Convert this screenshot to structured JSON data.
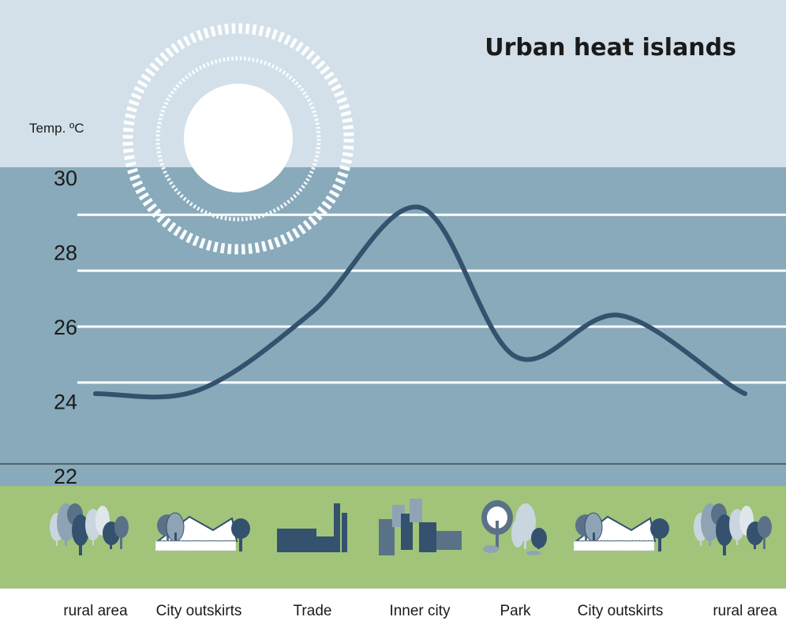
{
  "chart_data": {
    "type": "line",
    "title": "Urban heat islands",
    "ylabel": "Temp. ºC",
    "xlabel": "",
    "ylim": [
      22,
      30
    ],
    "yticks": [
      30,
      28,
      26,
      24,
      22
    ],
    "categories": [
      "rural area",
      "City outskirts",
      "Trade",
      "Inner city",
      "Park",
      "City outskirts",
      "rural area"
    ],
    "series": [
      {
        "values": [
          24.2,
          24.3,
          26.4,
          29.2,
          25.2,
          26.3,
          24.2
        ]
      }
    ],
    "grid": true,
    "legend": "none"
  },
  "colors": {
    "sky": "#d3e0e9",
    "plot_background": "#88aabb",
    "ground": "#a1c47a",
    "line": "#34516e",
    "gridline": "#ffffff",
    "sun": "#ffffff",
    "buildings": "#34516e",
    "trees": "#5a7288"
  },
  "icons": [
    "sun-icon",
    "forest-icon",
    "houses-icon",
    "factory-icon",
    "city-buildings-icon",
    "park-trees-icon",
    "houses-icon",
    "forest-icon"
  ]
}
